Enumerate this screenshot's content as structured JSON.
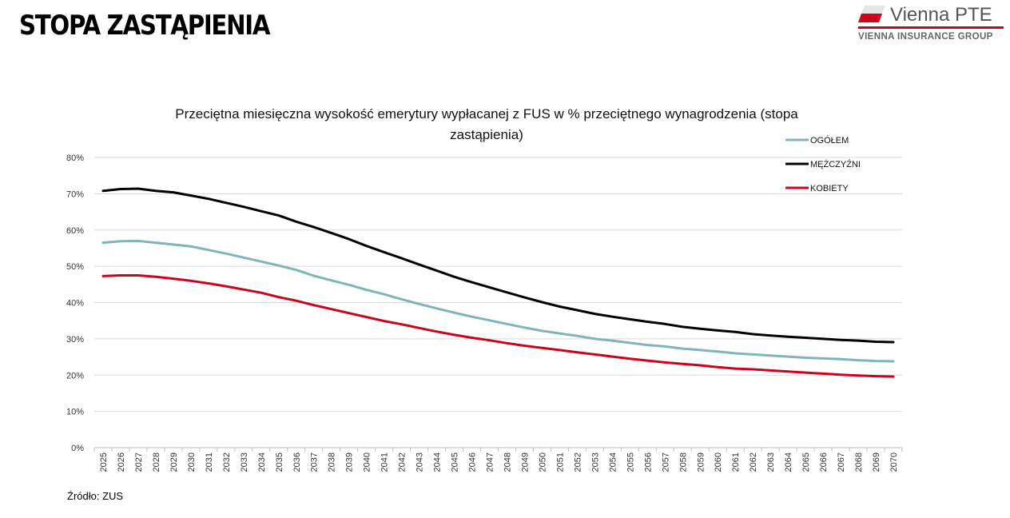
{
  "page": {
    "title": "STOPA ZASTĄPIENIA",
    "source": "Źródło: ZUS"
  },
  "logo": {
    "name": "Vienna PTE",
    "group": "VIENNA INSURANCE GROUP",
    "accent_color": "#d0021b"
  },
  "chart_data": {
    "type": "line",
    "title": "Przeciętna miesięczna wysokość emerytury wypłacanej z FUS w % przeciętnego wynagrodzenia (stopa zastąpienia)",
    "title_lines": [
      "Przeciętna miesięczna wysokość emerytury wypłacanej z FUS w % przeciętnego wynagrodzenia (stopa",
      "zastąpienia)"
    ],
    "xlabel": "",
    "ylabel": "",
    "ylim": [
      0,
      80
    ],
    "yticks": [
      0,
      10,
      20,
      30,
      40,
      50,
      60,
      70,
      80
    ],
    "ytick_labels": [
      "0%",
      "10%",
      "20%",
      "30%",
      "40%",
      "50%",
      "60%",
      "70%",
      "80%"
    ],
    "grid": true,
    "legend_position": "top-right",
    "categories": [
      "2025",
      "2026",
      "2027",
      "2028",
      "2029",
      "2030",
      "2031",
      "2032",
      "2033",
      "2034",
      "2035",
      "2036",
      "2037",
      "2038",
      "2039",
      "2040",
      "2041",
      "2042",
      "2043",
      "2044",
      "2045",
      "2046",
      "2047",
      "2048",
      "2049",
      "2050",
      "2051",
      "2052",
      "2053",
      "2054",
      "2055",
      "2056",
      "2057",
      "2058",
      "2059",
      "2060",
      "2061",
      "2062",
      "2063",
      "2064",
      "2065",
      "2066",
      "2067",
      "2068",
      "2069",
      "2070"
    ],
    "series": [
      {
        "name": "OGÓŁEM",
        "color": "#7fb5b8",
        "values": [
          56.5,
          56.9,
          57.0,
          56.5,
          56.0,
          55.5,
          54.5,
          53.5,
          52.4,
          51.3,
          50.2,
          49.0,
          47.4,
          46.1,
          44.9,
          43.5,
          42.3,
          40.9,
          39.6,
          38.4,
          37.2,
          36.1,
          35.1,
          34.1,
          33.1,
          32.2,
          31.5,
          30.8,
          30.0,
          29.5,
          28.9,
          28.3,
          27.9,
          27.3,
          26.9,
          26.5,
          26.0,
          25.7,
          25.4,
          25.1,
          24.8,
          24.6,
          24.4,
          24.1,
          23.9,
          23.8
        ]
      },
      {
        "name": "MĘŻCZYŹNI",
        "color": "#000000",
        "values": [
          70.8,
          71.3,
          71.4,
          70.8,
          70.4,
          69.5,
          68.6,
          67.5,
          66.4,
          65.2,
          64.0,
          62.3,
          60.8,
          59.2,
          57.5,
          55.6,
          53.9,
          52.2,
          50.5,
          48.8,
          47.1,
          45.6,
          44.2,
          42.8,
          41.4,
          40.1,
          38.9,
          37.9,
          36.9,
          36.1,
          35.4,
          34.7,
          34.1,
          33.3,
          32.8,
          32.3,
          31.9,
          31.3,
          30.9,
          30.6,
          30.3,
          30.0,
          29.7,
          29.5,
          29.2,
          29.1
        ]
      },
      {
        "name": "KOBIETY",
        "color": "#d0021b",
        "values": [
          47.3,
          47.5,
          47.5,
          47.1,
          46.6,
          46.0,
          45.3,
          44.5,
          43.6,
          42.7,
          41.5,
          40.5,
          39.3,
          38.2,
          37.1,
          36.0,
          34.9,
          34.0,
          33.0,
          32.0,
          31.1,
          30.3,
          29.6,
          28.8,
          28.1,
          27.5,
          26.9,
          26.3,
          25.7,
          25.1,
          24.5,
          24.0,
          23.5,
          23.1,
          22.7,
          22.2,
          21.8,
          21.6,
          21.3,
          21.0,
          20.7,
          20.4,
          20.1,
          19.9,
          19.7,
          19.6
        ]
      }
    ]
  }
}
